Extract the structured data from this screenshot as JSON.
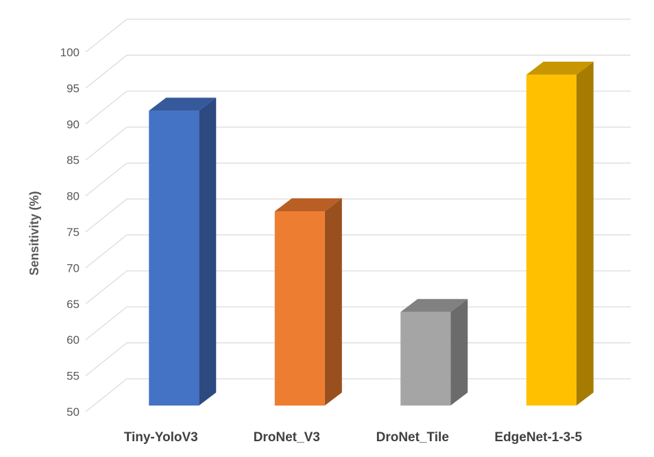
{
  "chart_data": {
    "type": "bar",
    "style": "3d-column",
    "title": "",
    "xlabel": "",
    "ylabel": "Sensitivity (%)",
    "ylim": [
      50,
      100
    ],
    "yticks": [
      50,
      55,
      60,
      65,
      70,
      75,
      80,
      85,
      90,
      95,
      100
    ],
    "grid": true,
    "legend": "none",
    "categories": [
      "Tiny-YoloV3",
      "DroNet_V3",
      "DroNet_Tile",
      "EdgeNet-1-3-5"
    ],
    "values": [
      91,
      77,
      63,
      96
    ],
    "colors": [
      {
        "front": "#4472C4",
        "side": "#2C4A80",
        "top": "#35599A"
      },
      {
        "front": "#ED7D31",
        "side": "#9A4F1E",
        "top": "#B95F25"
      },
      {
        "front": "#A5A5A5",
        "side": "#6B6B6B",
        "top": "#818181"
      },
      {
        "front": "#FFC000",
        "side": "#A67C00",
        "top": "#C89600"
      }
    ]
  }
}
